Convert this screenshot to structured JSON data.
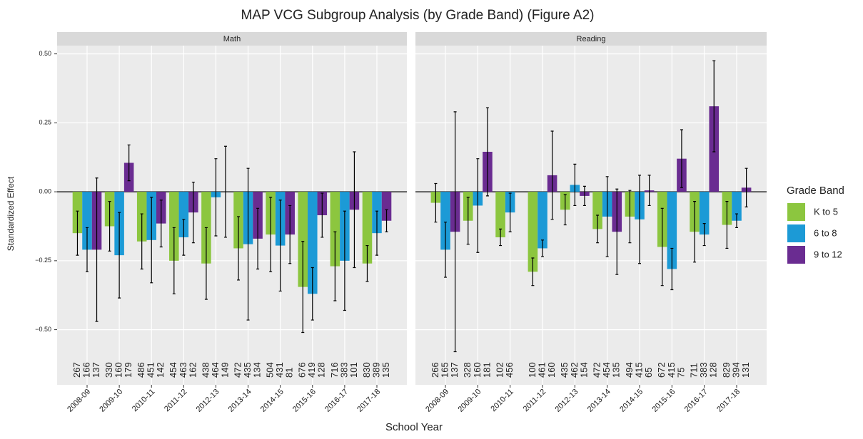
{
  "chart_data": {
    "type": "bar",
    "title": "MAP VCG Subgroup Analysis (by Grade Band) (Figure A2)",
    "x_label": "School Year",
    "y_label": "Standardized Effect",
    "legend_title": "Grade Band",
    "categories": [
      "2008-09",
      "2009-10",
      "2010-11",
      "2011-12",
      "2012-13",
      "2013-14",
      "2014-15",
      "2015-16",
      "2016-17",
      "2017-18"
    ],
    "ylim": [
      -0.7,
      0.53
    ],
    "yticks": [
      {
        "value": -0.5,
        "label": "−0.50"
      },
      {
        "value": -0.25,
        "label": "−0.25"
      },
      {
        "value": 0,
        "label": "0.00"
      },
      {
        "value": 0.25,
        "label": "0.25"
      },
      {
        "value": 0.5,
        "label": "0.50"
      }
    ],
    "grid": true,
    "series": [
      {
        "name": "K to 5",
        "color": "#8cc63f"
      },
      {
        "name": "6 to 8",
        "color": "#1c9ad6"
      },
      {
        "name": "9 to  12",
        "color": "#6a2c91"
      }
    ],
    "panels": [
      {
        "name": "Math",
        "series": [
          {
            "values": [
              -0.15,
              -0.125,
              -0.18,
              -0.25,
              -0.26,
              -0.205,
              -0.155,
              -0.345,
              -0.27,
              -0.26
            ],
            "errors": [
              0.08,
              0.09,
              0.1,
              0.12,
              0.13,
              0.115,
              0.135,
              0.165,
              0.125,
              0.065
            ],
            "n": [
              267,
              330,
              486,
              454,
              438,
              472,
              504,
              676,
              716,
              830
            ]
          },
          {
            "values": [
              -0.21,
              -0.23,
              -0.175,
              -0.165,
              -0.02,
              -0.19,
              -0.195,
              -0.37,
              -0.25,
              -0.15
            ],
            "errors": [
              0.08,
              0.155,
              0.155,
              0.065,
              0.14,
              0.275,
              0.165,
              0.095,
              0.18,
              0.08
            ],
            "n": [
              166,
              160,
              451,
              463,
              464,
              435,
              431,
              419,
              383,
              389
            ]
          },
          {
            "values": [
              -0.21,
              0.105,
              -0.115,
              -0.075,
              0,
              -0.17,
              -0.155,
              -0.085,
              -0.065,
              -0.105
            ],
            "errors": [
              0.26,
              0.065,
              0.085,
              0.11,
              0.165,
              0.11,
              0.105,
              0.08,
              0.21,
              0.04
            ],
            "n": [
              137,
              179,
              142,
              162,
              149,
              134,
              81,
              128,
              101,
              135
            ]
          }
        ]
      },
      {
        "name": "Reading",
        "series": [
          {
            "values": [
              -0.04,
              -0.105,
              -0.165,
              -0.29,
              -0.065,
              -0.135,
              -0.09,
              -0.2,
              -0.145,
              -0.12
            ],
            "errors": [
              0.07,
              0.085,
              0.03,
              0.05,
              0.055,
              0.05,
              0.095,
              0.14,
              0.11,
              0.085
            ],
            "n": [
              266,
              328,
              102,
              100,
              435,
              472,
              494,
              672,
              711,
              829
            ]
          },
          {
            "values": [
              -0.21,
              -0.05,
              -0.075,
              -0.205,
              0.025,
              -0.09,
              -0.1,
              -0.28,
              -0.155,
              -0.105
            ],
            "errors": [
              0.1,
              0.17,
              0.07,
              0.03,
              0.075,
              0.145,
              0.16,
              0.075,
              0.04,
              0.025
            ],
            "n": [
              165,
              160,
              456,
              461,
              462,
              454,
              415,
              415,
              383,
              394
            ]
          },
          {
            "values": [
              -0.145,
              0.145,
              null,
              0.06,
              -0.015,
              -0.145,
              0.005,
              0.12,
              0.31,
              0.015
            ],
            "errors": [
              0.435,
              0.16,
              null,
              0.16,
              0.035,
              0.155,
              0.055,
              0.105,
              0.165,
              0.07
            ],
            "n": [
              137,
              181,
              null,
              160,
              154,
              135,
              65,
              75,
              128,
              131
            ]
          }
        ]
      }
    ]
  }
}
